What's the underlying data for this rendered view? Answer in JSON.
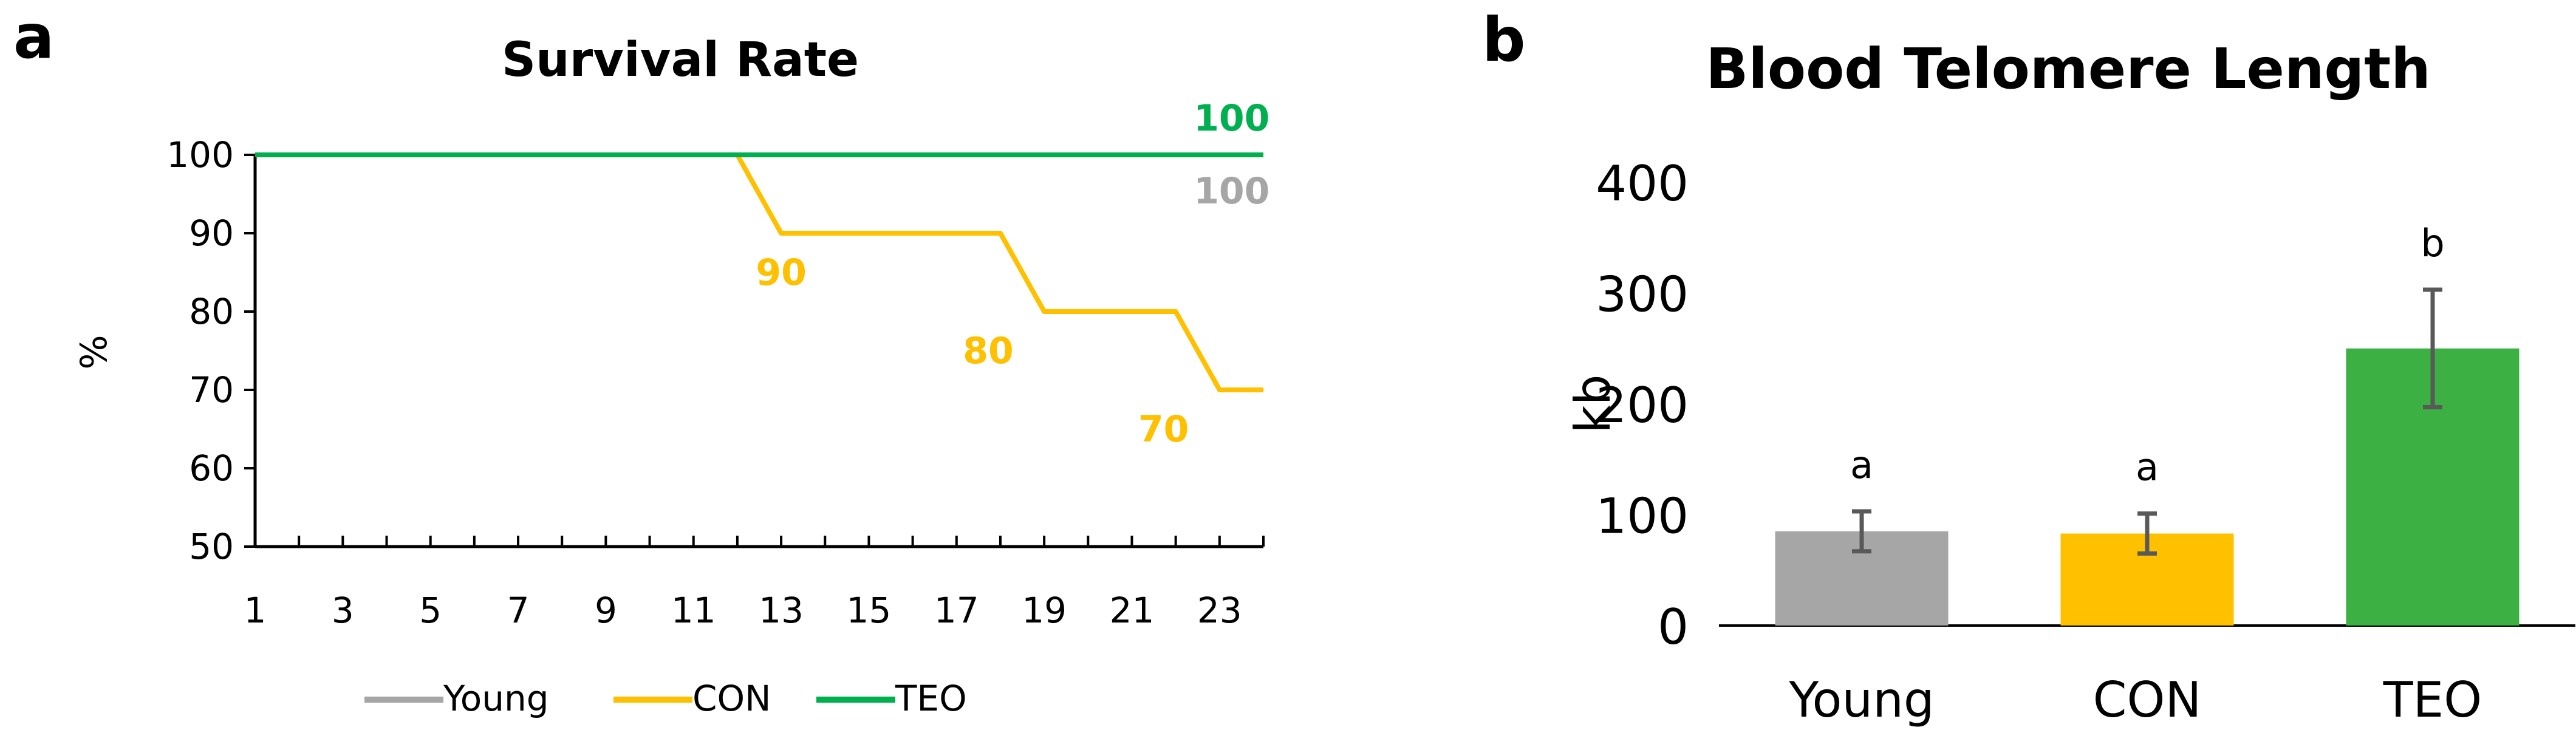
{
  "panels": {
    "a": {
      "label": "a"
    },
    "b": {
      "label": "b"
    }
  },
  "chart_data": [
    {
      "type": "line",
      "title": "Survival Rate",
      "xlabel": "",
      "ylabel": "%",
      "xlim": [
        1,
        24
      ],
      "ylim": [
        50,
        100
      ],
      "xticks": [
        "1",
        "3",
        "5",
        "7",
        "9",
        "11",
        "13",
        "15",
        "17",
        "19",
        "21",
        "23"
      ],
      "yticks": [
        "50",
        "60",
        "70",
        "80",
        "90",
        "100"
      ],
      "grid": false,
      "legend_position": "bottom",
      "series": [
        {
          "name": "Young",
          "color": "#a6a6a6",
          "x": [
            1,
            24
          ],
          "y": [
            100,
            100
          ]
        },
        {
          "name": "CON",
          "color": "#ffc000",
          "x": [
            1,
            12,
            13,
            18,
            19,
            22,
            23,
            24
          ],
          "y": [
            100,
            100,
            90,
            90,
            80,
            80,
            70,
            70
          ]
        },
        {
          "name": "TEO",
          "color": "#00b050",
          "x": [
            1,
            24
          ],
          "y": [
            100,
            100
          ]
        }
      ],
      "annotations": [
        {
          "text": "100",
          "x": 23,
          "y": 100,
          "color": "#00b050",
          "position": "above"
        },
        {
          "text": "100",
          "x": 23,
          "y": 100,
          "color": "#a6a6a6",
          "position": "below"
        },
        {
          "text": "90",
          "x": 13,
          "y": 90,
          "color": "#ffc000",
          "position": "below"
        },
        {
          "text": "80",
          "x": 18,
          "y": 80,
          "color": "#ffc000",
          "position": "below"
        },
        {
          "text": "70",
          "x": 22,
          "y": 70,
          "color": "#ffc000",
          "position": "below"
        }
      ]
    },
    {
      "type": "bar",
      "title": "Blood Telomere Length",
      "xlabel": "",
      "ylabel": "kb",
      "ylim": [
        0,
        400
      ],
      "yticks": [
        "0",
        "100",
        "200",
        "300",
        "400"
      ],
      "grid": false,
      "categories": [
        "Young",
        "CON",
        "TEO"
      ],
      "values": [
        85,
        83,
        250
      ],
      "errors": [
        18,
        18,
        53
      ],
      "colors": [
        "#a6a6a6",
        "#ffc000",
        "#3cb043"
      ],
      "significance": [
        "a",
        "a",
        "b"
      ]
    }
  ]
}
